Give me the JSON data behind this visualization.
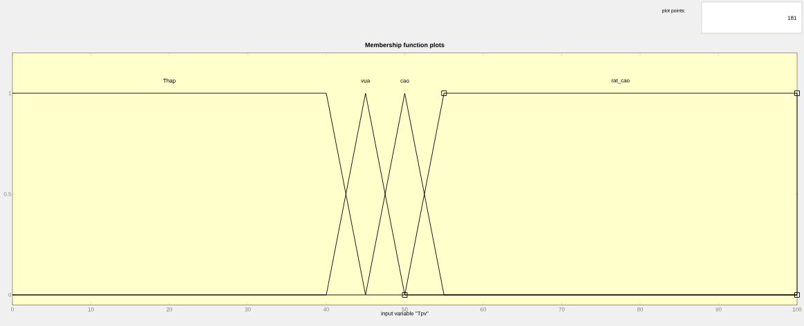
{
  "chart_data": {
    "type": "line",
    "title": "Membership function plots",
    "xlabel": "input variable \"Tpv\"",
    "series": [
      {
        "name": "Thap",
        "color": "#000000",
        "x": [
          0,
          40,
          45,
          100
        ],
        "values": [
          1,
          1,
          0,
          0
        ],
        "marker": "none"
      },
      {
        "name": "vua",
        "color": "#000000",
        "x": [
          0,
          40,
          45,
          50,
          100
        ],
        "values": [
          0,
          0,
          1,
          0,
          0
        ],
        "marker": "none"
      },
      {
        "name": "cao",
        "color": "#000000",
        "x": [
          0,
          45,
          50,
          55,
          100
        ],
        "values": [
          0,
          0,
          1,
          0,
          0
        ],
        "marker": "none"
      },
      {
        "name": "rat_cao",
        "color": "#000000",
        "x": [
          50,
          55,
          100,
          100
        ],
        "values": [
          0,
          1,
          1,
          0
        ],
        "marker": "square"
      }
    ],
    "xlim": [
      0,
      100
    ],
    "ylim": [
      -0.05,
      1.2
    ],
    "xticks": [
      0,
      10,
      20,
      30,
      40,
      50,
      60,
      70,
      80,
      90,
      100
    ],
    "yticks": [
      0,
      0.5,
      1
    ],
    "line_style": "solid",
    "annotations": [
      "plot points:",
      "181"
    ]
  }
}
